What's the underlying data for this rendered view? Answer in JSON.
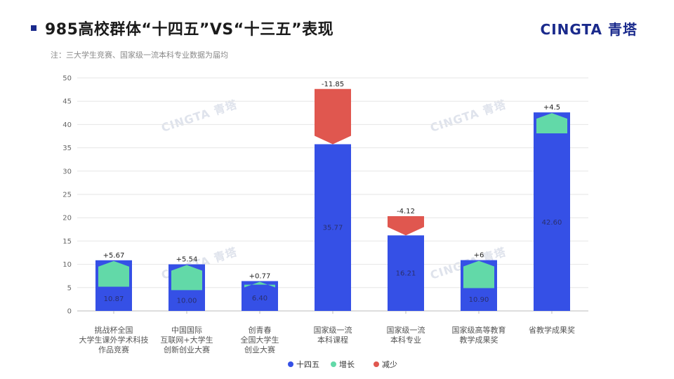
{
  "header": {
    "title": "985高校群体“十四五”VS“十三五”表现",
    "brand": "CINGTA 青塔",
    "note": "注：三大学生竞赛、国家级一流本科专业数据为届均"
  },
  "watermark": "CINGTA 青塔",
  "colors": {
    "base": "#3550e6",
    "increase": "#62d9a8",
    "decrease": "#e0574f",
    "axis": "#bbbbbb",
    "grid": "#e6e6e6"
  },
  "chart_data": {
    "type": "bar",
    "title": "985高校群体“十四五”VS“十三五”表现",
    "ylim": [
      0,
      50
    ],
    "yticks": [
      0,
      5,
      10,
      15,
      20,
      25,
      30,
      35,
      40,
      45,
      50
    ],
    "grid": true,
    "legend_position": "bottom-center",
    "categories": [
      [
        "挑战杯全国",
        "大学生课外学术科技",
        "作品竞赛"
      ],
      [
        "中国国际",
        "互联网+大学生",
        "创新创业大赛"
      ],
      [
        "创青春",
        "全国大学生",
        "创业大赛"
      ],
      [
        "国家级一流",
        "本科课程"
      ],
      [
        "国家级一流",
        "本科专业"
      ],
      [
        "国家级高等教育",
        "教学成果奖"
      ],
      [
        "省教学成果奖"
      ]
    ],
    "series": [
      {
        "name": "十四五",
        "values": [
          10.87,
          10.0,
          6.4,
          35.77,
          16.21,
          10.9,
          42.6
        ],
        "value_labels": [
          "10.87",
          "10.00",
          "6.40",
          "35.77",
          "16.21",
          "10.90",
          "42.60"
        ]
      },
      {
        "name": "增长",
        "values": [
          5.67,
          5.54,
          0.77,
          0,
          0,
          6,
          4.5
        ],
        "value_labels": [
          "+5.67",
          "+5.54",
          "+0.77",
          "",
          "",
          "+6",
          "+4.5"
        ]
      },
      {
        "name": "减少",
        "values": [
          0,
          0,
          0,
          11.85,
          4.12,
          0,
          0
        ],
        "value_labels": [
          "",
          "",
          "",
          "-11.85",
          "-4.12",
          "",
          ""
        ]
      }
    ]
  }
}
